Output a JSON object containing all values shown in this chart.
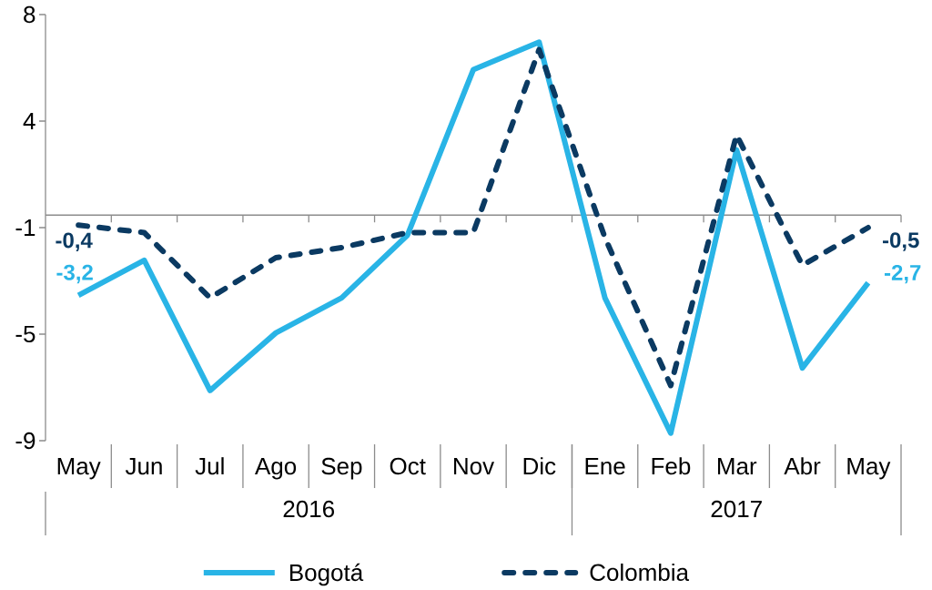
{
  "chart_data": {
    "type": "line",
    "categories": [
      "May",
      "Jun",
      "Jul",
      "Ago",
      "Sep",
      "Oct",
      "Nov",
      "Dic",
      "Ene",
      "Feb",
      "Mar",
      "Abr",
      "May"
    ],
    "series": [
      {
        "name": "Bogotá",
        "color": "#29b4e6",
        "line_style": "solid",
        "values": [
          -3.2,
          -1.8,
          -7.0,
          -4.7,
          -3.3,
          -0.8,
          5.8,
          6.9,
          -3.3,
          -8.7,
          2.6,
          -6.1,
          -2.7
        ],
        "value_labels": [
          "-3,2",
          null,
          null,
          null,
          null,
          null,
          null,
          null,
          null,
          null,
          null,
          null,
          "-2,7"
        ]
      },
      {
        "name": "Colombia",
        "color": "#0b3a62",
        "line_style": "dashed",
        "values": [
          -0.4,
          -0.7,
          -3.3,
          -1.7,
          -1.3,
          -0.7,
          -0.7,
          6.6,
          -0.9,
          -6.8,
          3.2,
          -2.0,
          -0.5
        ],
        "value_labels": [
          "-0,4",
          null,
          null,
          null,
          null,
          null,
          null,
          null,
          null,
          null,
          null,
          null,
          "-0,5"
        ]
      }
    ],
    "ylim": [
      -9,
      8
    ],
    "yticks": [
      8,
      {
        "value": 3.75,
        "label": "4"
      },
      {
        "value": -0.5,
        "label": "-1"
      },
      {
        "value": -4.75,
        "label": "-5"
      },
      -9
    ],
    "annotations": [
      "2016",
      "2017"
    ],
    "legend": "bottom"
  }
}
